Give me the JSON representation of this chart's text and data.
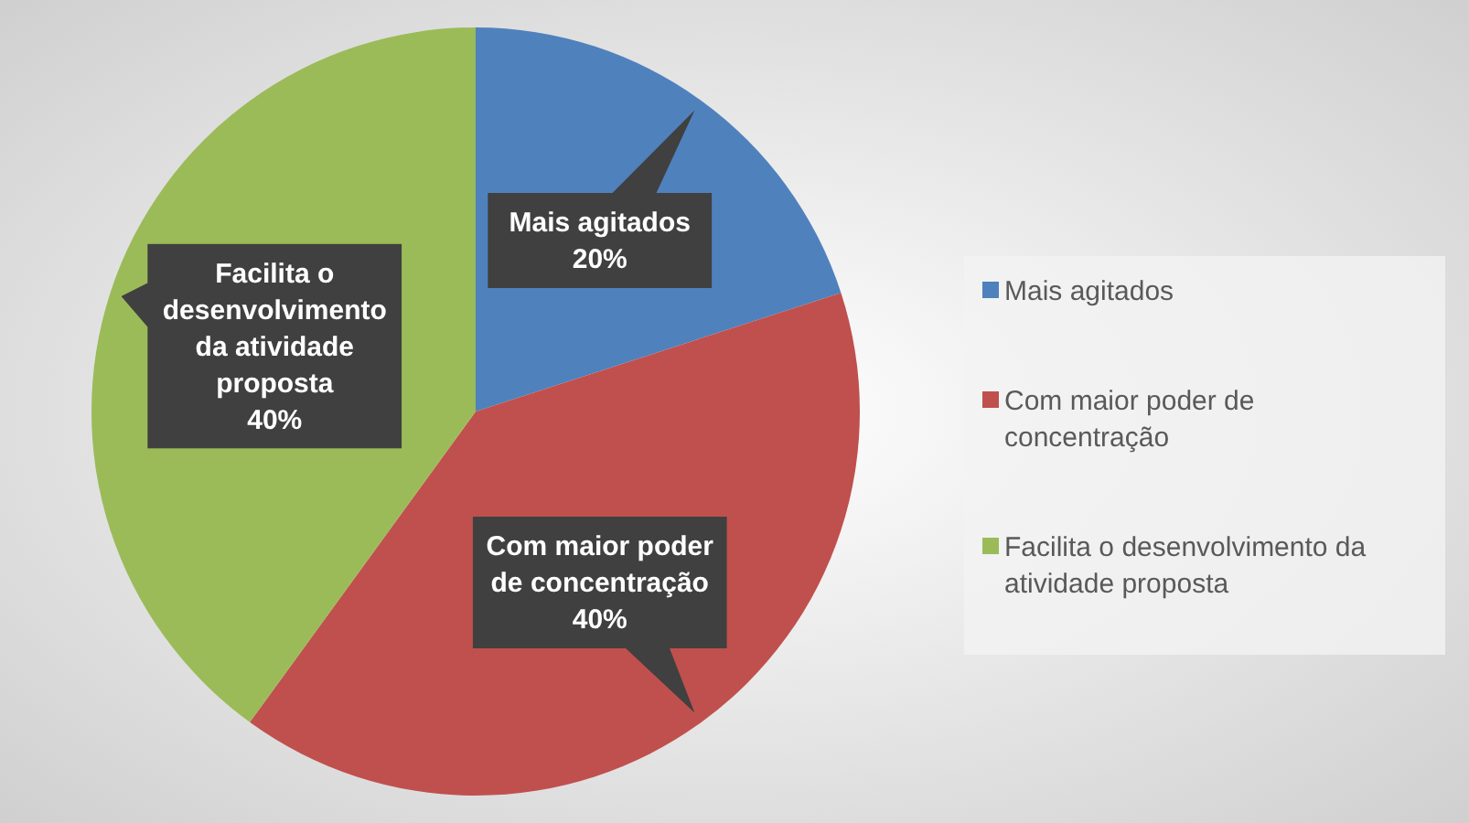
{
  "chart_data": {
    "type": "pie",
    "categories": [
      "Mais agitados",
      "Com maior poder de concentração",
      "Facilita o desenvolvimento da atividade proposta"
    ],
    "values": [
      20,
      40,
      40
    ],
    "colors": [
      "#4f81bd",
      "#c0504d",
      "#9bbb59"
    ],
    "value_labels": [
      "20%",
      "40%",
      "40%"
    ],
    "legend": "right"
  }
}
